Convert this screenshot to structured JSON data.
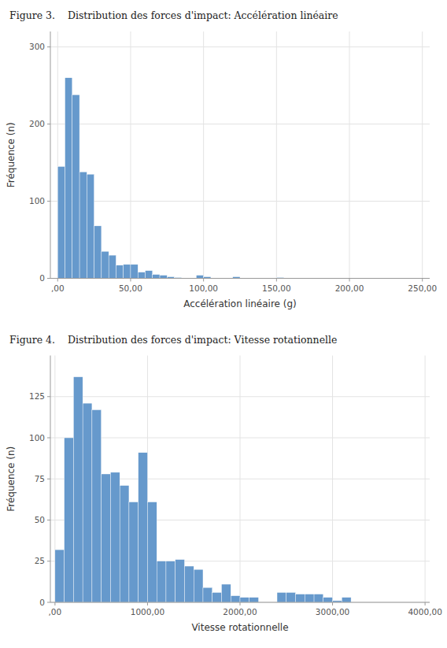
{
  "chart_data": [
    {
      "type": "histogram",
      "title": "Figure 3.    Distribution des forces d'impact: Accélération linéaire",
      "xlabel": "Accélération linéaire (g)",
      "ylabel": "Fréquence (n)",
      "values": [
        145,
        260,
        238,
        138,
        135,
        68,
        35,
        30,
        17,
        18,
        18,
        8,
        10,
        5,
        4,
        2,
        1,
        0,
        0,
        4,
        2,
        0,
        0,
        0,
        2,
        0,
        0,
        0,
        0,
        0,
        1,
        0,
        0,
        0,
        0,
        0,
        0,
        0,
        0,
        0,
        0,
        0,
        0,
        0,
        0,
        0,
        0,
        0,
        0,
        0
      ],
      "bins": [
        0,
        5,
        10,
        15,
        20,
        25,
        30,
        35,
        40,
        45,
        50,
        55,
        60,
        65,
        70,
        75,
        80,
        85,
        90,
        95,
        100,
        105,
        110,
        115,
        120,
        125,
        130,
        135,
        140,
        145,
        150,
        155,
        160,
        165,
        170,
        175,
        180,
        185,
        190,
        195,
        200,
        205,
        210,
        215,
        220,
        225,
        230,
        235,
        240,
        245,
        250
      ],
      "xlim": [
        -5,
        255
      ],
      "ylim": [
        0,
        320
      ],
      "xticks": [
        {
          "value": 0,
          "label": ",00"
        },
        {
          "value": 50,
          "label": "50,00"
        },
        {
          "value": 100,
          "label": "100,00"
        },
        {
          "value": 150,
          "label": "150,00"
        },
        {
          "value": 200,
          "label": "200,00"
        },
        {
          "value": 250,
          "label": "250,00"
        }
      ],
      "yticks": [
        0,
        100,
        200,
        300
      ],
      "grid": true,
      "color": "#6699CC"
    },
    {
      "type": "histogram",
      "title": "Figure 4.    Distribution des forces d'impact: Vitesse rotationnelle",
      "xlabel": "Vitesse rotationnelle",
      "ylabel": "Fréquence (n)",
      "values": [
        32,
        100,
        137,
        121,
        117,
        78,
        79,
        71,
        61,
        91,
        61,
        25,
        25,
        26,
        22,
        20,
        9,
        6,
        11,
        4,
        3,
        3,
        0,
        0,
        6,
        6,
        5,
        5,
        5,
        3,
        1,
        3,
        0,
        0,
        0,
        0,
        0,
        0,
        0,
        0
      ],
      "bins": [
        0,
        100,
        200,
        300,
        400,
        500,
        600,
        700,
        800,
        900,
        1000,
        1100,
        1200,
        1300,
        1400,
        1500,
        1600,
        1700,
        1800,
        1900,
        2000,
        2100,
        2200,
        2300,
        2400,
        2500,
        2600,
        2700,
        2800,
        2900,
        3000,
        3100,
        3200,
        3300,
        3400,
        3500,
        3600,
        3700,
        3800,
        3900,
        4000
      ],
      "xlim": [
        -50,
        4050
      ],
      "ylim": [
        0,
        150
      ],
      "xticks": [
        {
          "value": 0,
          "label": ",00"
        },
        {
          "value": 1000,
          "label": "1000,00"
        },
        {
          "value": 2000,
          "label": "2000,00"
        },
        {
          "value": 3000,
          "label": "3000,00"
        },
        {
          "value": 4000,
          "label": "4000,00"
        }
      ],
      "yticks": [
        0,
        25,
        50,
        75,
        100,
        125
      ],
      "grid": true,
      "color": "#6699CC"
    }
  ]
}
